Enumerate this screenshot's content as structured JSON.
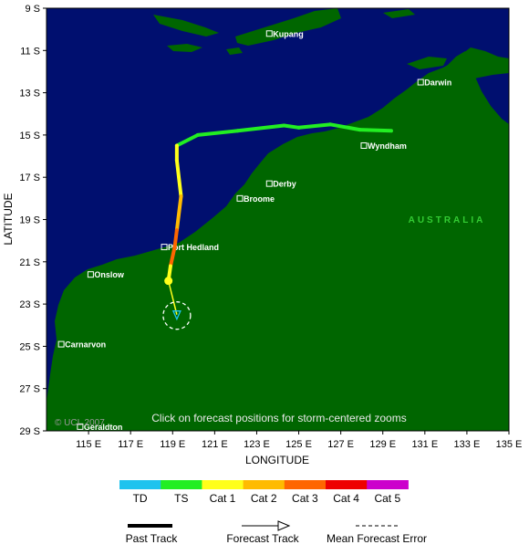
{
  "axes": {
    "x_title": "LONGITUDE",
    "y_title": "LATITUDE",
    "x_ticks": [
      "115 E",
      "117 E",
      "119 E",
      "121 E",
      "123 E",
      "125 E",
      "127 E",
      "129 E",
      "131 E",
      "133 E",
      "135 E"
    ],
    "y_ticks": [
      "9 S",
      "11 S",
      "13 S",
      "15 S",
      "17 S",
      "19 S",
      "21 S",
      "23 S",
      "25 S",
      "27 S",
      "29 S"
    ]
  },
  "cities": [
    {
      "name": "Kupang",
      "lon": 123.6,
      "lat": -10.2
    },
    {
      "name": "Darwin",
      "lon": 130.8,
      "lat": -12.5
    },
    {
      "name": "Wyndham",
      "lon": 128.1,
      "lat": -15.5
    },
    {
      "name": "Derby",
      "lon": 123.6,
      "lat": -17.3
    },
    {
      "name": "Broome",
      "lon": 122.2,
      "lat": -18.0
    },
    {
      "name": "Port Hedland",
      "lon": 118.6,
      "lat": -20.3
    },
    {
      "name": "Onslow",
      "lon": 115.1,
      "lat": -21.6
    },
    {
      "name": "Carnarvon",
      "lon": 113.7,
      "lat": -24.9
    },
    {
      "name": "Geraldton",
      "lon": 114.6,
      "lat": -28.8
    }
  ],
  "region_label": "AUSTRALIA",
  "note": "Click on forecast positions for storm-centered zooms",
  "copyright": "© UCL 2007",
  "storm": {
    "past_track": [
      {
        "lon": 129.4,
        "lat": -14.8,
        "cat": "TS"
      },
      {
        "lon": 127.9,
        "lat": -14.75,
        "cat": "TS"
      },
      {
        "lon": 126.5,
        "lat": -14.5,
        "cat": "TS"
      },
      {
        "lon": 125.0,
        "lat": -14.65,
        "cat": "TS"
      },
      {
        "lon": 124.3,
        "lat": -14.55,
        "cat": "TS"
      },
      {
        "lon": 122.1,
        "lat": -14.8,
        "cat": "TS"
      },
      {
        "lon": 120.2,
        "lat": -15.0,
        "cat": "TS"
      },
      {
        "lon": 119.2,
        "lat": -15.5,
        "cat": "TS"
      },
      {
        "lon": 119.2,
        "lat": -16.2,
        "cat": "Cat 1"
      },
      {
        "lon": 119.4,
        "lat": -17.9,
        "cat": "Cat 1"
      },
      {
        "lon": 119.2,
        "lat": -19.5,
        "cat": "Cat 2"
      },
      {
        "lon": 119.1,
        "lat": -20.3,
        "cat": "Cat 3"
      },
      {
        "lon": 118.9,
        "lat": -21.2,
        "cat": "Cat 3"
      },
      {
        "lon": 118.8,
        "lat": -21.9,
        "cat": "Cat 1"
      }
    ],
    "forecast_track": [
      {
        "lon": 118.8,
        "lat": -21.9,
        "cat": "Cat 1"
      },
      {
        "lon": 119.2,
        "lat": -23.5,
        "cat": "TD"
      }
    ],
    "current_position": {
      "lon": 118.8,
      "lat": -21.9
    },
    "forecast_position": {
      "lon": 119.2,
      "lat": -23.5
    }
  },
  "legend": {
    "categories": [
      {
        "label": "TD",
        "color": "#1ec3ee"
      },
      {
        "label": "TS",
        "color": "#22ee22"
      },
      {
        "label": "Cat 1",
        "color": "#ffff1a"
      },
      {
        "label": "Cat 2",
        "color": "#ffbb00"
      },
      {
        "label": "Cat 3",
        "color": "#ff6600"
      },
      {
        "label": "Cat 4",
        "color": "#ee0000"
      },
      {
        "label": "Cat 5",
        "color": "#cc00cc"
      }
    ],
    "past_track_label": "Past Track",
    "forecast_track_label": "Forecast Track",
    "error_label": "Mean Forecast Error"
  },
  "colors": {
    "ocean": "#000f6f",
    "land": "#006600",
    "frame": "#000000"
  }
}
